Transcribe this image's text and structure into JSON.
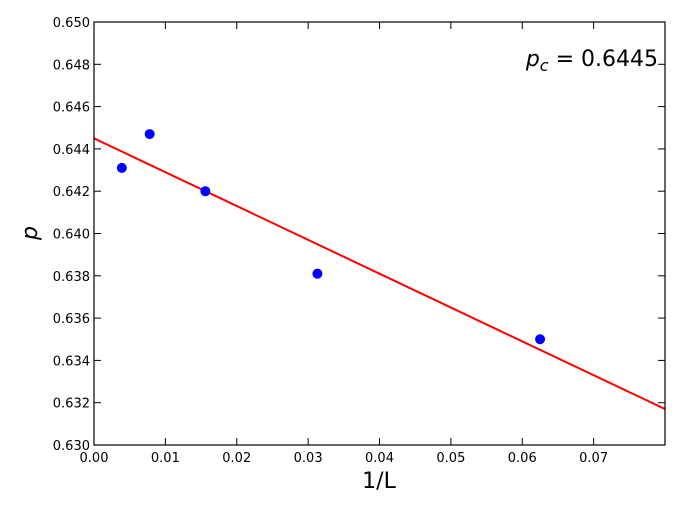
{
  "chart_data": {
    "type": "scatter",
    "title": "",
    "xlabel": "1/L",
    "ylabel": "p",
    "xlim": [
      0.0,
      0.08
    ],
    "ylim": [
      0.63,
      0.65
    ],
    "x_ticks": [
      0.0,
      0.01,
      0.02,
      0.03,
      0.04,
      0.05,
      0.06,
      0.07
    ],
    "x_tick_labels": [
      "0.00",
      "0.01",
      "0.02",
      "0.03",
      "0.04",
      "0.05",
      "0.06",
      "0.07"
    ],
    "y_ticks": [
      0.63,
      0.632,
      0.634,
      0.636,
      0.638,
      0.64,
      0.642,
      0.644,
      0.646,
      0.648,
      0.65
    ],
    "y_tick_labels": [
      "0.630",
      "0.632",
      "0.634",
      "0.636",
      "0.638",
      "0.640",
      "0.642",
      "0.644",
      "0.646",
      "0.648",
      "0.650"
    ],
    "grid": false,
    "series": [
      {
        "kind": "points",
        "color": "#0000ff",
        "x": [
          0.0039,
          0.0078,
          0.0156,
          0.0313,
          0.0625
        ],
        "y": [
          0.6431,
          0.6447,
          0.642,
          0.6381,
          0.635
        ]
      },
      {
        "kind": "fit-line",
        "color": "#ff0000",
        "x": [
          0.0,
          0.08
        ],
        "y": [
          0.6445,
          0.6317
        ]
      }
    ],
    "annotation": {
      "symbol": "p",
      "subscript": "c",
      "equals_value": " = 0.6445",
      "placement": "top-right"
    }
  }
}
